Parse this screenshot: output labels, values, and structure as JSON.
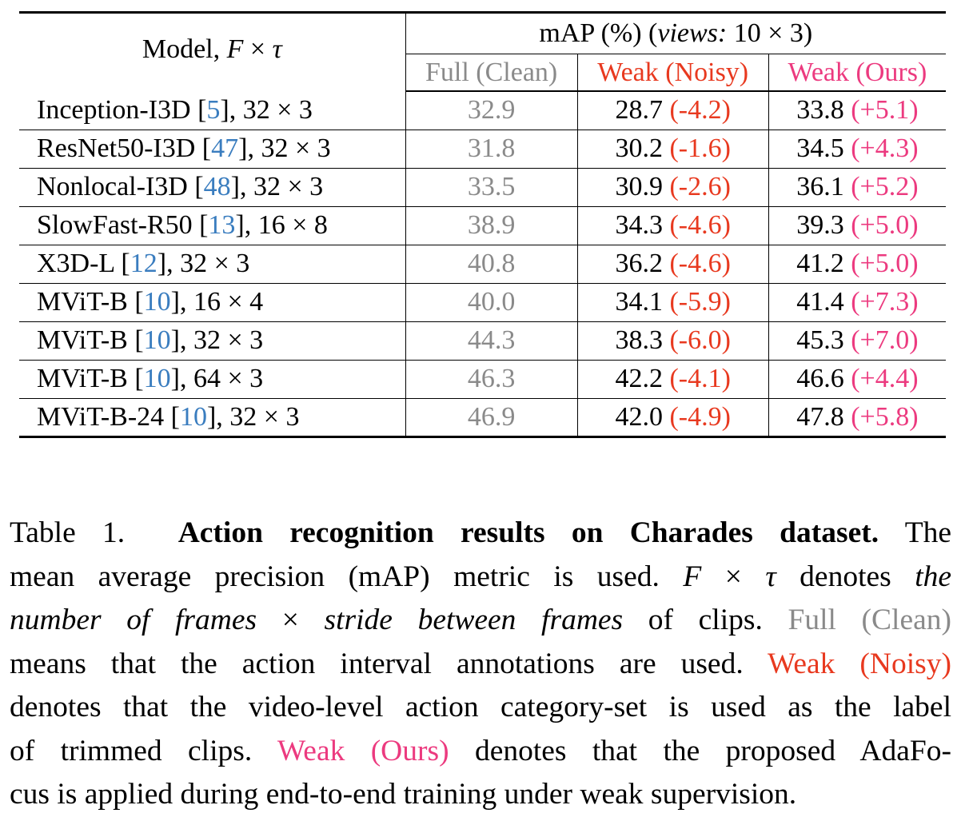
{
  "header": {
    "model_col": "Model, F × τ",
    "group": "mAP (%) (views: 10 × 3)",
    "columns": {
      "full": "Full (Clean)",
      "noisy": "Weak (Noisy)",
      "ours": "Weak (Ours)"
    }
  },
  "rows": [
    {
      "name": "Inception-I3D [",
      "cite": "5",
      "config": "], 32 × 3",
      "full": "32.9",
      "noisy": "28.7",
      "noisy_delta": "(-4.2)",
      "ours": "33.8",
      "ours_delta": "(+5.1)"
    },
    {
      "name": "ResNet50-I3D [",
      "cite": "47",
      "config": "], 32 × 3",
      "full": "31.8",
      "noisy": "30.2",
      "noisy_delta": "(-1.6)",
      "ours": "34.5",
      "ours_delta": "(+4.3)"
    },
    {
      "name": "Nonlocal-I3D [",
      "cite": "48",
      "config": "], 32 × 3",
      "full": "33.5",
      "noisy": "30.9",
      "noisy_delta": "(-2.6)",
      "ours": "36.1",
      "ours_delta": "(+5.2)"
    },
    {
      "name": "SlowFast-R50 [",
      "cite": "13",
      "config": "], 16 × 8",
      "full": "38.9",
      "noisy": "34.3",
      "noisy_delta": "(-4.6)",
      "ours": "39.3",
      "ours_delta": "(+5.0)"
    },
    {
      "name": "X3D-L [",
      "cite": "12",
      "config": "], 32 × 3",
      "full": "40.8",
      "noisy": "36.2",
      "noisy_delta": "(-4.6)",
      "ours": "41.2",
      "ours_delta": "(+5.0)"
    },
    {
      "name": "MViT-B [",
      "cite": "10",
      "config": "], 16 × 4",
      "full": "40.0",
      "noisy": "34.1",
      "noisy_delta": "(-5.9)",
      "ours": "41.4",
      "ours_delta": "(+7.3)"
    },
    {
      "name": "MViT-B [",
      "cite": "10",
      "config": "], 32 × 3",
      "full": "44.3",
      "noisy": "38.3",
      "noisy_delta": "(-6.0)",
      "ours": "45.3",
      "ours_delta": "(+7.0)"
    },
    {
      "name": "MViT-B [",
      "cite": "10",
      "config": "], 64 × 3",
      "full": "46.3",
      "noisy": "42.2",
      "noisy_delta": "(-4.1)",
      "ours": "46.6",
      "ours_delta": "(+4.4)"
    },
    {
      "name": "MViT-B-24 [",
      "cite": "10",
      "config": "], 32 × 3",
      "full": "46.9",
      "noisy": "42.0",
      "noisy_delta": "(-4.9)",
      "ours": "47.8",
      "ours_delta": "(+5.8)"
    }
  ],
  "caption": {
    "label": "Table 1.",
    "title": "Action recognition results on Charades dataset.",
    "t1": "The mean average precision (mAP) metric is used.",
    "fx": "F × τ",
    "t2": "denotes",
    "t3_it": "the number of frames × stride between frames",
    "t4": "of clips.",
    "full": "Full (Clean)",
    "t5": "means that the action interval annotations are used.",
    "noisy": "Weak (Noisy)",
    "t6": "denotes that the video-level action category-set is used as the label of trimmed clips.",
    "ours": "Weak (Ours)",
    "t7": "denotes that the proposed AdaFocus is applied during end-to-end training under weak supervision."
  },
  "colors": {
    "full": "#8a8a8a",
    "noisy": "#e8391f",
    "ours": "#ec3a7f",
    "citation": "#3a7dbf"
  }
}
